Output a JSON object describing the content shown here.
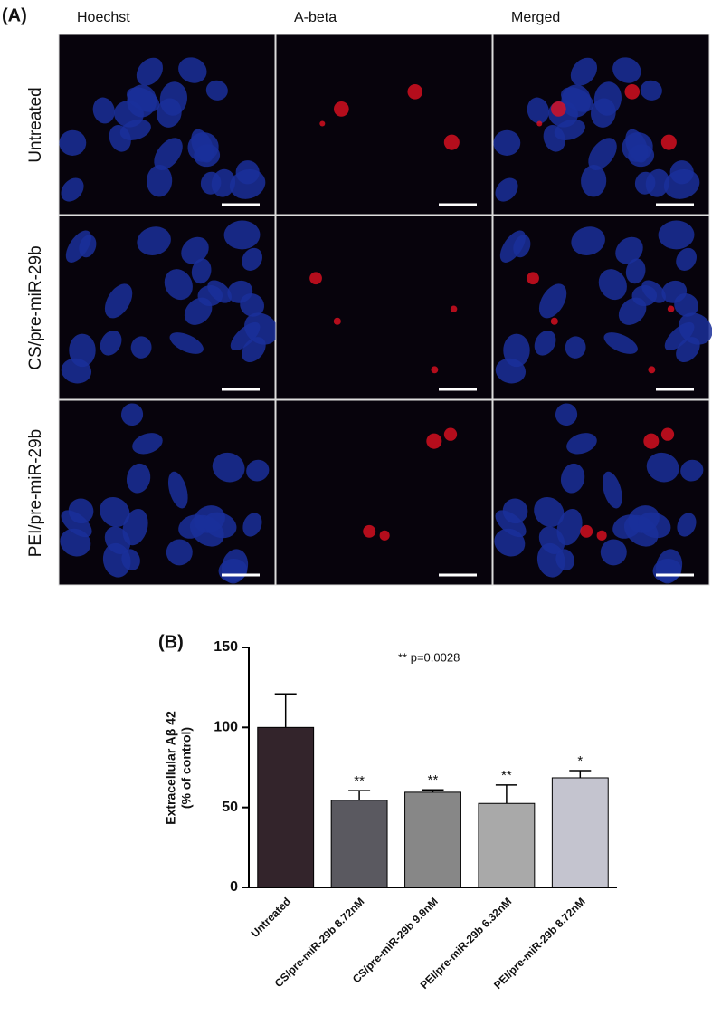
{
  "panel_a": {
    "label": "(A)",
    "columns": [
      "Hoechst",
      "A-beta",
      "Merged"
    ],
    "rows": [
      "Untreated",
      "CS/pre-miR-29b",
      "PEI/pre-miR-29b"
    ]
  },
  "chart_data": {
    "type": "bar",
    "panel_label": "(B)",
    "ylabel": [
      "Extracellular Aβ 42",
      "(% of control)"
    ],
    "annotation": "**  p=0.0028",
    "categories": [
      "Untreated",
      "CS/pre-miR-29b 8.72nM",
      "CS/pre-miR-29b 9.9nM",
      "PEI/pre-miR-29b 6.32nM",
      "PEI/pre-miR-29b 8.72nM"
    ],
    "values": [
      100,
      54.5,
      59.5,
      52.5,
      68.5
    ],
    "errors": [
      21,
      6,
      1.5,
      11.5,
      4.5
    ],
    "significance": [
      null,
      "**",
      "**",
      "**",
      "*"
    ],
    "colors": [
      "#33242b",
      "#5a5960",
      "#878787",
      "#a9a9a9",
      "#c4c4cf"
    ],
    "ylim": [
      0,
      150
    ],
    "yticks": [
      0,
      50,
      100,
      150
    ]
  }
}
